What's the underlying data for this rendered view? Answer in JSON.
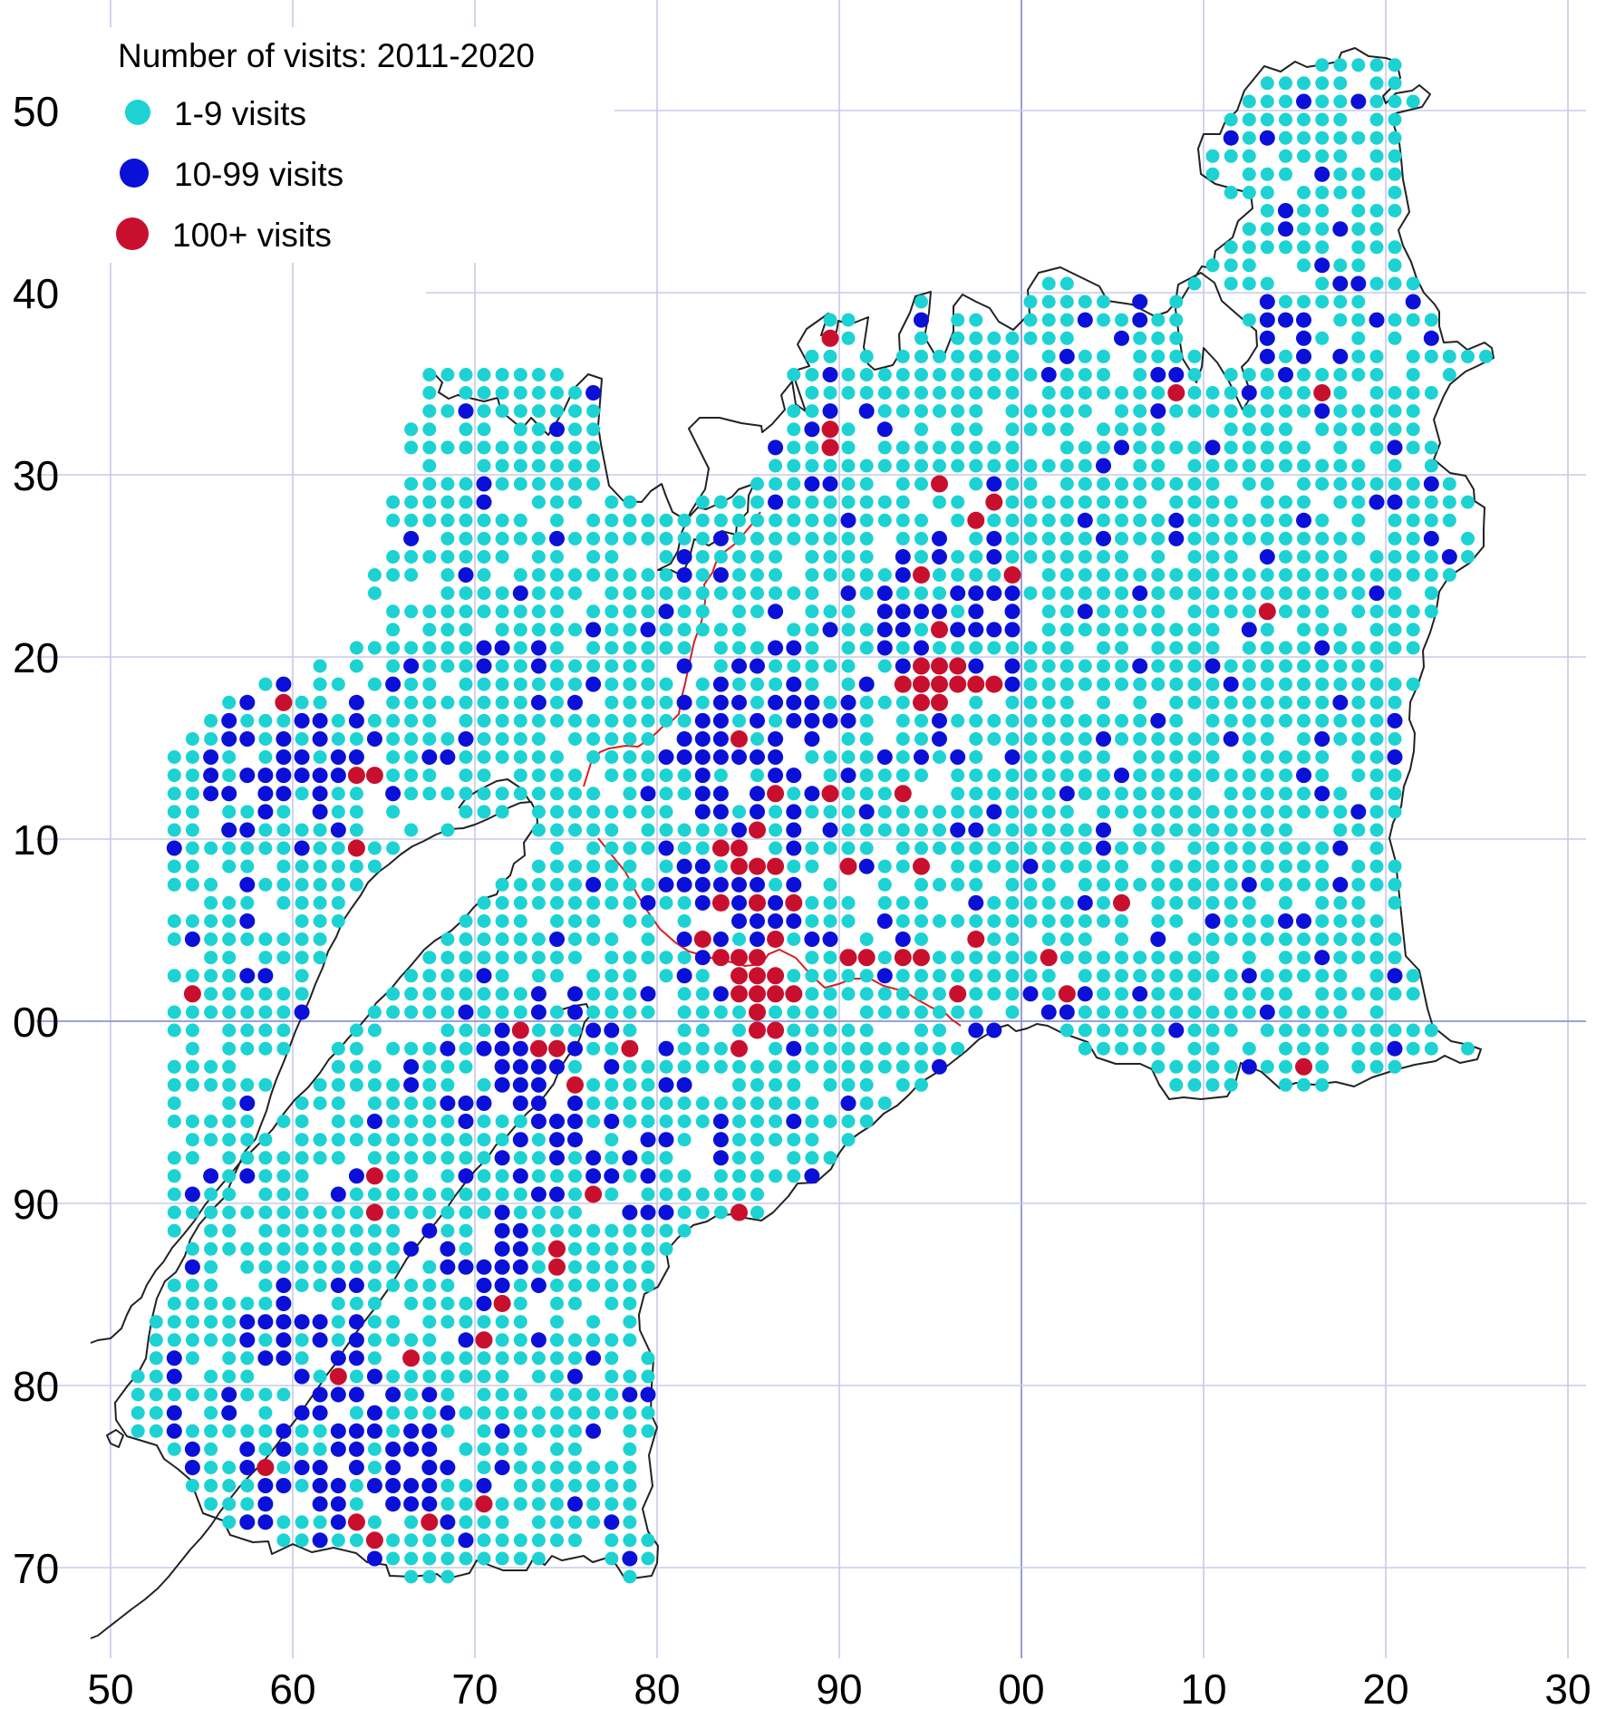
{
  "legend": {
    "title": "Number of visits:  2011-2020",
    "items": [
      {
        "label": "1-9 visits",
        "color": "#1dd2d2"
      },
      {
        "label": "10-99 visits",
        "color": "#0a10d8"
      },
      {
        "label": "100+ visits",
        "color": "#c8102e"
      }
    ]
  },
  "axes": {
    "x_ticks": [
      "50",
      "60",
      "70",
      "80",
      "90",
      "00",
      "10",
      "20",
      "30"
    ],
    "y_ticks": [
      "50",
      "40",
      "30",
      "20",
      "10",
      "00",
      "90",
      "80",
      "70"
    ]
  },
  "colors": {
    "grid": "#c8cae8",
    "origin_line": "#8e92d6",
    "coastline": "#222222",
    "river": "#d62020"
  },
  "chart_data": {
    "type": "scatter",
    "title": "Number of visits:  2011-2020",
    "xlabel": "",
    "ylabel": "",
    "x_ticks": [
      "50",
      "60",
      "70",
      "80",
      "90",
      "00",
      "10",
      "20",
      "30"
    ],
    "y_ticks": [
      "50",
      "40",
      "30",
      "20",
      "10",
      "00",
      "90",
      "80",
      "70"
    ],
    "grid": true,
    "legend_position": "top-left",
    "series": [
      {
        "name": "1-9 visits",
        "color": "#1dd2d2"
      },
      {
        "name": "10-99 visits",
        "color": "#0a10d8"
      },
      {
        "name": "100+ visits",
        "color": "#c8102e"
      }
    ],
    "high_visit_squares": [
      [
        59.5,
        17.5
      ],
      [
        63.5,
        13.5
      ],
      [
        64.5,
        13.5
      ],
      [
        63.5,
        9.5
      ],
      [
        54.5,
        1.5
      ],
      [
        83.5,
        9.5
      ],
      [
        84.5,
        9.5
      ],
      [
        85.5,
        10.5
      ],
      [
        84.5,
        8.5
      ],
      [
        85.5,
        8.5
      ],
      [
        83.5,
        6.5
      ],
      [
        85.5,
        6.5
      ],
      [
        86.5,
        8.5
      ],
      [
        87.5,
        6.5
      ],
      [
        82.5,
        4.5
      ],
      [
        83.5,
        3.5
      ],
      [
        84.5,
        3.5
      ],
      [
        85.5,
        3.5
      ],
      [
        86.5,
        4.5
      ],
      [
        84.5,
        2.5
      ],
      [
        85.5,
        2.5
      ],
      [
        86.5,
        2.5
      ],
      [
        84.5,
        1.5
      ],
      [
        85.5,
        1.5
      ],
      [
        86.5,
        1.5
      ],
      [
        87.5,
        1.5
      ],
      [
        85.5,
        0.5
      ],
      [
        85.5,
        -0.5
      ],
      [
        86.5,
        -0.5
      ],
      [
        84.5,
        -1.5
      ],
      [
        72.5,
        -0.5
      ],
      [
        73.5,
        -1.5
      ],
      [
        74.5,
        -1.5
      ],
      [
        78.5,
        -1.5
      ],
      [
        75.5,
        -3.5
      ],
      [
        76.5,
        -9.5
      ],
      [
        84.5,
        -10.5
      ],
      [
        74.5,
        -12.5
      ],
      [
        74.5,
        -13.5
      ],
      [
        71.5,
        -15.5
      ],
      [
        70.5,
        -17.5
      ],
      [
        66.5,
        -18.5
      ],
      [
        62.5,
        -19.5
      ],
      [
        58.5,
        -24.5
      ],
      [
        70.5,
        -26.5
      ],
      [
        63.5,
        -27.5
      ],
      [
        67.5,
        -27.5
      ],
      [
        64.5,
        -28.5
      ],
      [
        64.5,
        -8.5
      ],
      [
        64.5,
        -10.5
      ],
      [
        89.5,
        37.5
      ],
      [
        89.5,
        32.5
      ],
      [
        89.5,
        31.5
      ],
      [
        95.5,
        29.5
      ],
      [
        97.5,
        27.5
      ],
      [
        98.5,
        28.5
      ],
      [
        94.5,
        24.5
      ],
      [
        99.5,
        24.5
      ],
      [
        95.5,
        21.5
      ],
      [
        94.5,
        19.5
      ],
      [
        95.5,
        19.5
      ],
      [
        96.5,
        19.5
      ],
      [
        93.5,
        18.5
      ],
      [
        94.5,
        18.5
      ],
      [
        95.5,
        18.5
      ],
      [
        96.5,
        18.5
      ],
      [
        97.5,
        18.5
      ],
      [
        98.5,
        18.5
      ],
      [
        94.5,
        17.5
      ],
      [
        95.5,
        17.5
      ],
      [
        84.5,
        15.5
      ],
      [
        86.5,
        12.5
      ],
      [
        89.5,
        12.5
      ],
      [
        93.5,
        12.5
      ],
      [
        90.5,
        8.5
      ],
      [
        94.5,
        8.5
      ],
      [
        90.5,
        3.5
      ],
      [
        91.5,
        3.5
      ],
      [
        93.5,
        3.5
      ],
      [
        94.5,
        3.5
      ],
      [
        97.5,
        4.5
      ],
      [
        96.5,
        1.5
      ],
      [
        101.5,
        3.5
      ],
      [
        102.5,
        1.5
      ],
      [
        105.5,
        6.5
      ],
      [
        105.5,
        -2.5
      ],
      [
        108.5,
        34.5
      ],
      [
        113.5,
        22.5
      ],
      [
        116.5,
        34.5
      ],
      [
        115.5,
        -2.5
      ]
    ]
  }
}
